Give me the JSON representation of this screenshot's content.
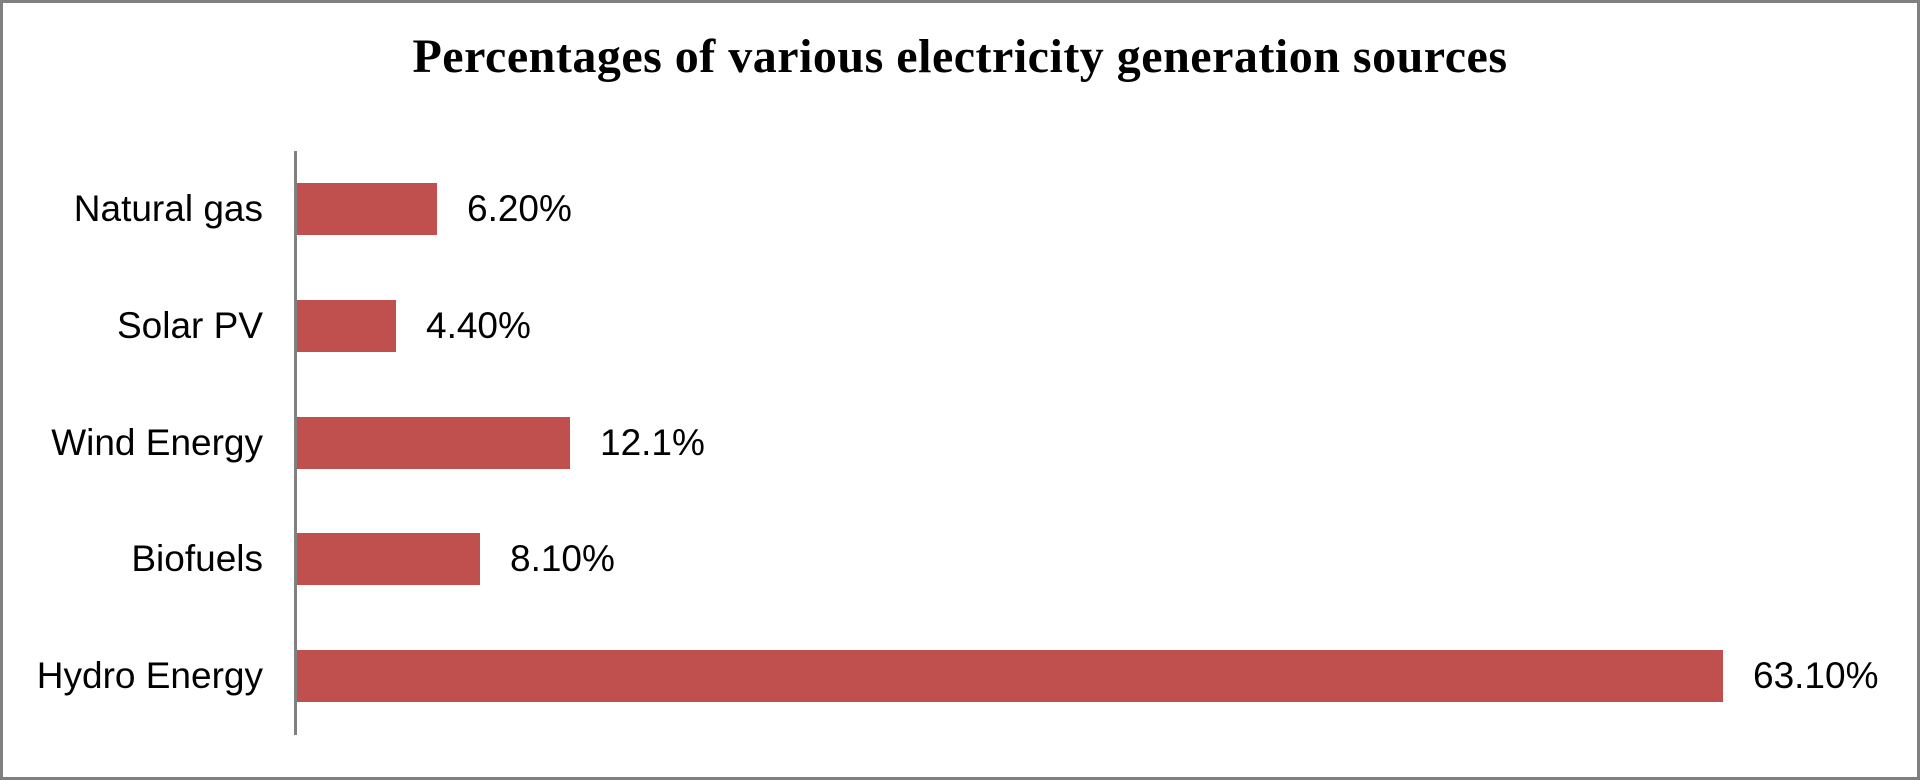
{
  "page": {
    "background_color": "#ffffff",
    "frame_border_color": "#808080"
  },
  "chart_data": {
    "type": "bar",
    "orientation": "horizontal",
    "title": "Percentages of various electricity generation sources",
    "categories": [
      "Natural gas",
      "Solar PV",
      "Wind Energy",
      "Biofuels",
      "Hydro Energy"
    ],
    "values": [
      6.2,
      4.4,
      12.1,
      8.1,
      63.1
    ],
    "value_labels": [
      "6.20%",
      "4.40%",
      "12.1%",
      "8.10%",
      "63.10%"
    ],
    "unit": "percent",
    "bar_color": "#c0504d",
    "axis_color": "#808080",
    "text_color": "#000000",
    "xlim": [
      0,
      70
    ],
    "grid": false,
    "legend": false,
    "data_labels_position": "outside-end"
  }
}
